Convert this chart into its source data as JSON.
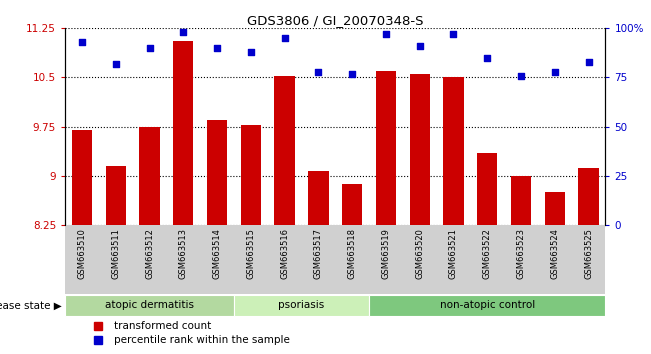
{
  "title": "GDS3806 / GI_20070348-S",
  "samples": [
    "GSM663510",
    "GSM663511",
    "GSM663512",
    "GSM663513",
    "GSM663514",
    "GSM663515",
    "GSM663516",
    "GSM663517",
    "GSM663518",
    "GSM663519",
    "GSM663520",
    "GSM663521",
    "GSM663522",
    "GSM663523",
    "GSM663524",
    "GSM663525"
  ],
  "bar_values": [
    9.7,
    9.15,
    9.75,
    11.05,
    9.85,
    9.78,
    10.52,
    9.07,
    8.88,
    10.6,
    10.55,
    10.5,
    9.35,
    9.0,
    8.75,
    9.12
  ],
  "dot_values": [
    93,
    82,
    90,
    98,
    90,
    88,
    95,
    78,
    77,
    97,
    91,
    97,
    85,
    76,
    78,
    83
  ],
  "bar_color": "#cc0000",
  "dot_color": "#0000cc",
  "ylim_left": [
    8.25,
    11.25
  ],
  "ylim_right": [
    0,
    100
  ],
  "yticks_left": [
    8.25,
    9.0,
    9.75,
    10.5,
    11.25
  ],
  "ytick_labels_left": [
    "8.25",
    "9",
    "9.75",
    "10.5",
    "11.25"
  ],
  "yticks_right": [
    0,
    25,
    50,
    75,
    100
  ],
  "ytick_labels_right": [
    "0",
    "25",
    "50",
    "75",
    "100%"
  ],
  "groups": [
    {
      "label": "atopic dermatitis",
      "start": 0,
      "end": 4
    },
    {
      "label": "psoriasis",
      "start": 5,
      "end": 8
    },
    {
      "label": "non-atopic control",
      "start": 9,
      "end": 15
    }
  ],
  "group_colors": [
    "#b3d9a0",
    "#ccf0b8",
    "#7ec87e"
  ],
  "disease_state_label": "disease state",
  "legend_bar_label": "transformed count",
  "legend_dot_label": "percentile rank within the sample",
  "background_color": "#ffffff",
  "grid_color": "#000000",
  "tick_color_left": "#cc0000",
  "tick_color_right": "#0000cc",
  "xtick_bg_color": "#d0d0d0"
}
